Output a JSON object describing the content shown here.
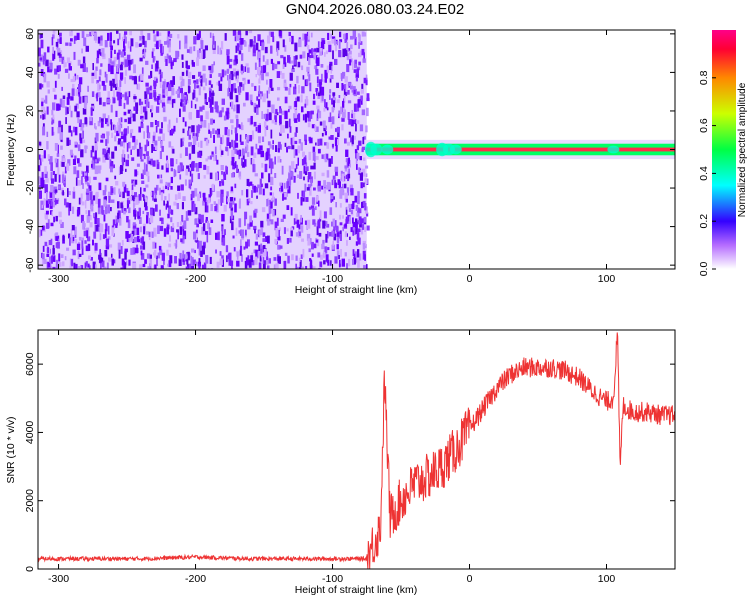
{
  "title": "GN04.2026.080.03.24.E02",
  "chart_data": [
    {
      "type": "heatmap",
      "xlabel": "Height of straight line (km)",
      "ylabel": "Frequency (Hz)",
      "xlim": [
        -315,
        150
      ],
      "ylim": [
        -62,
        62
      ],
      "xticks": [
        -300,
        -200,
        -100,
        0,
        100
      ],
      "yticks": [
        -60,
        -40,
        -20,
        0,
        20,
        40,
        60
      ],
      "noise_region_x": [
        -315,
        -75
      ],
      "signal_band": {
        "x_start": -75,
        "x_end": 150,
        "frequency_center": 0,
        "half_width_hz": 2
      },
      "colorbar": {
        "label": "Normalized spectral amplitude",
        "range": [
          0,
          1
        ],
        "ticks": [
          0.0,
          0.2,
          0.4,
          0.6,
          0.8
        ],
        "tick_labels": [
          "0.0",
          "0.2",
          "0.4",
          "0.6",
          "0.8"
        ]
      },
      "colors": {
        "noise_dark": "#6a00ff",
        "noise_light": "#cfa8ff",
        "band": "#ff2a4a",
        "band_edge": "#00ff66"
      }
    },
    {
      "type": "line",
      "xlabel": "Height of straight line (km)",
      "ylabel": "SNR (10 * v/v)",
      "xlim": [
        -315,
        150
      ],
      "ylim": [
        0,
        7000
      ],
      "xticks": [
        -300,
        -200,
        -100,
        0,
        100
      ],
      "yticks": [
        0,
        2000,
        4000,
        6000
      ],
      "line_color": "#ee3333",
      "series": [
        {
          "x": [
            -315,
            -280,
            -240,
            -200,
            -160,
            -120,
            -90,
            -75,
            -65,
            -62,
            -58,
            -50,
            -40,
            -30,
            -20,
            -10,
            0,
            10,
            20,
            30,
            40,
            50,
            60,
            70,
            80,
            90,
            100,
            105,
            108,
            110,
            112,
            115,
            120,
            130,
            140,
            150
          ],
          "y": [
            300,
            300,
            300,
            350,
            300,
            300,
            300,
            300,
            1200,
            5600,
            1500,
            2000,
            2500,
            2700,
            3000,
            3500,
            4100,
            4700,
            5300,
            5700,
            5900,
            5900,
            5900,
            5800,
            5600,
            5200,
            4900,
            5000,
            6900,
            2900,
            4800,
            4700,
            4600,
            4600,
            4500,
            4500
          ]
        }
      ]
    }
  ]
}
